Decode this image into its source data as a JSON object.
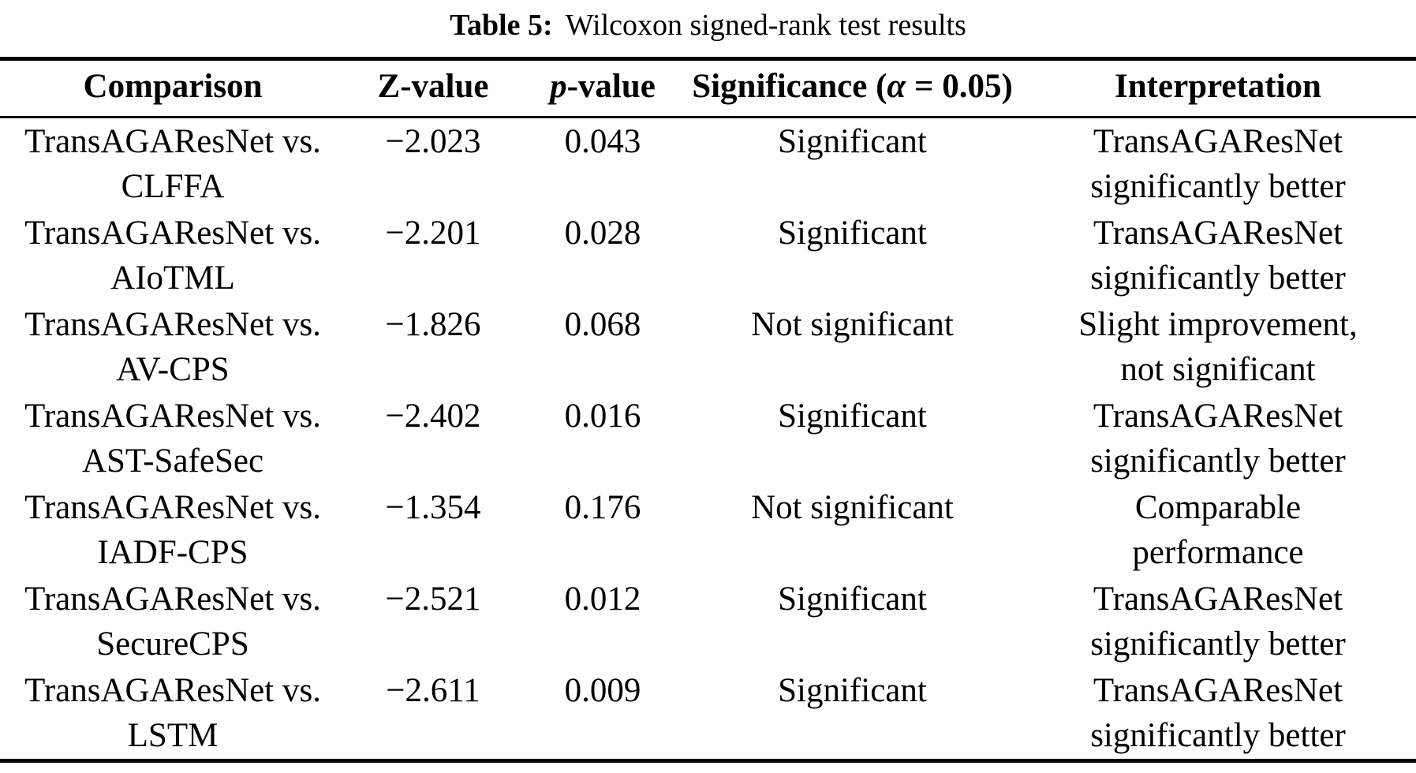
{
  "page": {
    "background": "#ffffff",
    "text_color": "#000000"
  },
  "caption": {
    "label": "Table 5:",
    "text": "Wilcoxon signed-rank test results"
  },
  "headers": {
    "comparison": "Comparison",
    "z": "Z-value",
    "p_italic": "p",
    "p_rest": "-value",
    "sig_pre": "Significance (",
    "sig_alpha": "α",
    "sig_post": " = 0.05)",
    "interpretation": "Interpretation"
  },
  "rows": [
    {
      "comparison": [
        "TransAGAResNet vs.",
        "CLFFA"
      ],
      "z": "−2.023",
      "p": "0.043",
      "significance": "Significant",
      "interpretation": [
        "TransAGAResNet",
        "significantly better"
      ]
    },
    {
      "comparison": [
        "TransAGAResNet vs.",
        "AIoTML"
      ],
      "z": "−2.201",
      "p": "0.028",
      "significance": "Significant",
      "interpretation": [
        "TransAGAResNet",
        "significantly better"
      ]
    },
    {
      "comparison": [
        "TransAGAResNet vs.",
        "AV-CPS"
      ],
      "z": "−1.826",
      "p": "0.068",
      "significance": "Not significant",
      "interpretation": [
        "Slight improvement,",
        "not significant"
      ]
    },
    {
      "comparison": [
        "TransAGAResNet vs.",
        "AST-SafeSec"
      ],
      "z": "−2.402",
      "p": "0.016",
      "significance": "Significant",
      "interpretation": [
        "TransAGAResNet",
        "significantly better"
      ]
    },
    {
      "comparison": [
        "TransAGAResNet vs.",
        "IADF-CPS"
      ],
      "z": "−1.354",
      "p": "0.176",
      "significance": "Not significant",
      "interpretation": [
        "Comparable",
        "performance"
      ]
    },
    {
      "comparison": [
        "TransAGAResNet vs.",
        "SecureCPS"
      ],
      "z": "−2.521",
      "p": "0.012",
      "significance": "Significant",
      "interpretation": [
        "TransAGAResNet",
        "significantly better"
      ]
    },
    {
      "comparison": [
        "TransAGAResNet vs.",
        "LSTM"
      ],
      "z": "−2.611",
      "p": "0.009",
      "significance": "Significant",
      "interpretation": [
        "TransAGAResNet",
        "significantly better"
      ]
    }
  ]
}
